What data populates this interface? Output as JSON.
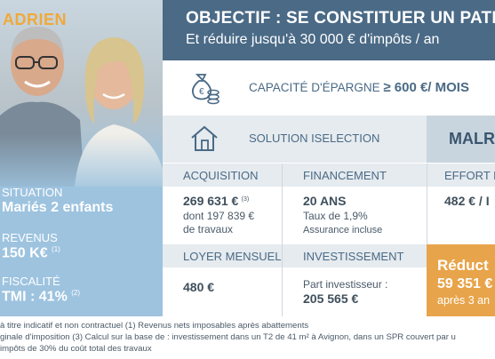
{
  "profile": {
    "name": "ADRIEN",
    "situation_label": "SITUATION",
    "situation_value": "Mariés 2 enfants",
    "revenus_label": "REVENUS",
    "revenus_value": "150 K€",
    "revenus_note": "(1)",
    "fiscalite_label": "FISCALITÉ",
    "fiscalite_value": "TMI : 41%",
    "fiscalite_note": "(2)"
  },
  "header": {
    "title": "OBJECTIF : SE CONSTITUER UN PATRI",
    "subtitle": "Et réduire jusqu'à 30 000 € d'impôts / an"
  },
  "epargne": {
    "label": "CAPACITÉ D'ÉPARGNE",
    "value": "≥ 600 €/ MOIS",
    "icon": "money-bag-coins-icon"
  },
  "solution": {
    "label": "SOLUTION ISELECTION",
    "icon": "house-icon",
    "product": "MALR"
  },
  "table": {
    "acquisition_header": "ACQUISITION",
    "acquisition_value": "269 631 €",
    "acquisition_note": "(3)",
    "acquisition_line2": "dont 197 839 €",
    "acquisition_line3": "de travaux",
    "financement_header": "FINANCEMENT",
    "financement_value": "20 ANS",
    "financement_line2": "Taux de 1,9%",
    "financement_line3": "Assurance incluse",
    "effort_header": "EFFORT D",
    "effort_value": "482 € / I",
    "loyer_header": "LOYER MENSUEL",
    "loyer_value": "480 €",
    "investissement_header": "INVESTISSEMENT",
    "investissement_line1": "Part investisseur :",
    "investissement_value": "205 565 €"
  },
  "reduction": {
    "line1": "Réduct",
    "line2": "59 351 €",
    "line3": "après 3 an"
  },
  "footnotes": {
    "line1": "à titre indicatif et non contractuel (1) Revenus nets imposables après abattements",
    "line2": "ginale d'imposition (3) Calcul sur la base de : investissement dans un T2 de 41 m² à Avignon, dans un SPR couvert par u",
    "line3": "impôts de 30% du coût total des travaux"
  },
  "colors": {
    "header_bg": "#4a6a86",
    "accent_orange": "#e8a44a",
    "panel_blue": "#9dc3df",
    "name_orange": "#f0a93a"
  }
}
